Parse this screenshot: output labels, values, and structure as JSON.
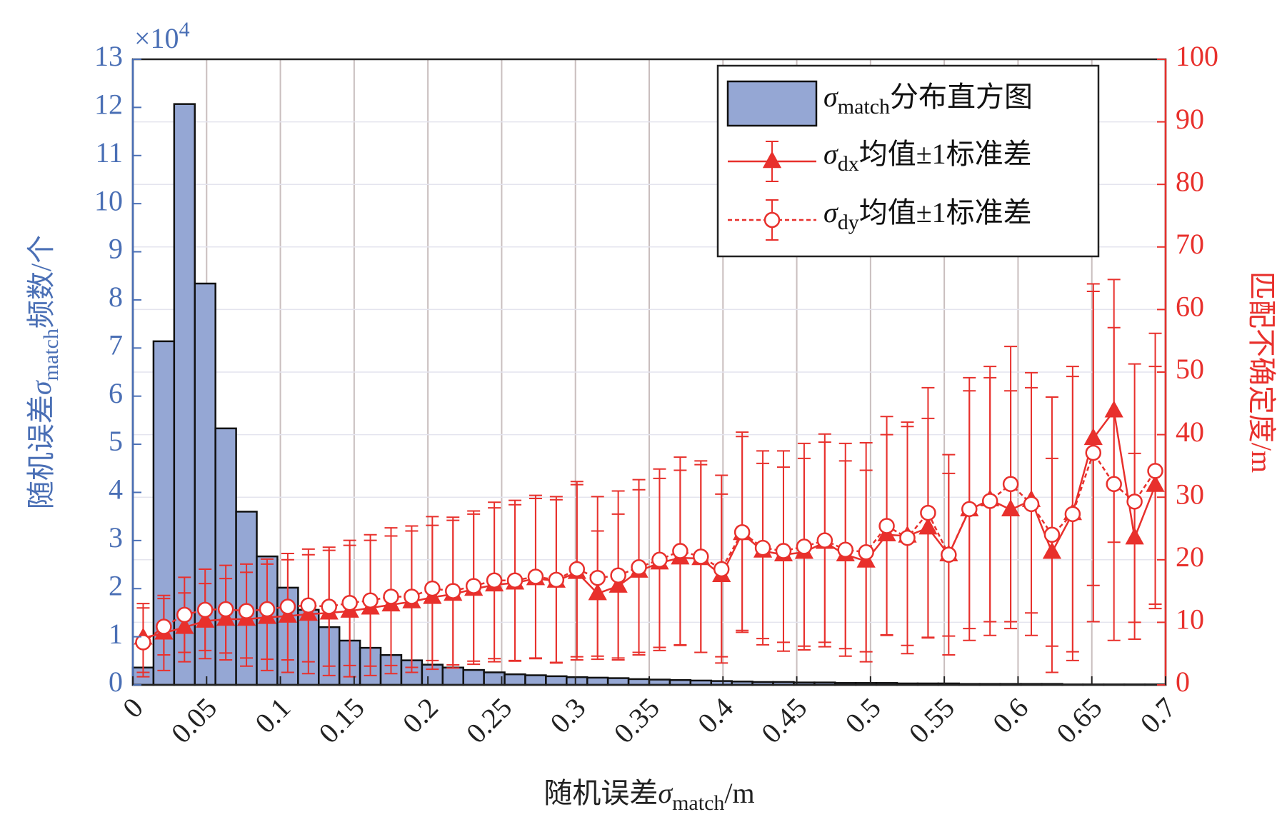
{
  "chart_data": {
    "type": "histogram",
    "xlabel": [
      "随机误差",
      "σ",
      "match",
      "/m"
    ],
    "ylabel": [
      "随机误差",
      "σ",
      "match",
      "频数/个"
    ],
    "y2label": "匹配不确定度/m",
    "y_multiplier": [
      "×10",
      "4"
    ],
    "xlim": [
      0,
      0.7
    ],
    "xticks": [
      0,
      0.05,
      0.1,
      0.15,
      0.2,
      0.25,
      0.3,
      0.35,
      0.4,
      0.45,
      0.5,
      0.55,
      0.6,
      0.65,
      0.7
    ],
    "ylim": [
      0,
      13
    ],
    "yticks": [
      0,
      1,
      2,
      3,
      4,
      5,
      6,
      7,
      8,
      9,
      10,
      11,
      12,
      13
    ],
    "y2lim": [
      0,
      100
    ],
    "y2ticks": [
      0,
      10,
      20,
      30,
      40,
      50,
      60,
      70,
      80,
      90,
      100
    ],
    "grid": true,
    "legend": "upper right",
    "histogram": {
      "name": [
        "σ",
        "match",
        "分布直方图"
      ],
      "color": "#95a7d4",
      "bins": [
        0,
        0.014,
        0.028,
        0.042,
        0.056,
        0.07,
        0.084,
        0.098,
        0.112,
        0.126,
        0.14,
        0.154,
        0.168,
        0.182,
        0.196,
        0.21,
        0.224,
        0.238,
        0.252,
        0.266,
        0.28,
        0.294,
        0.308,
        0.322,
        0.336,
        0.35,
        0.364,
        0.378,
        0.392,
        0.406,
        0.42,
        0.434,
        0.448,
        0.462,
        0.476,
        0.49,
        0.504,
        0.518,
        0.532,
        0.546,
        0.56,
        0.574,
        0.588,
        0.602,
        0.616,
        0.63,
        0.644,
        0.658,
        0.672,
        0.686,
        0.7
      ],
      "counts": [
        0.36,
        7.14,
        12.07,
        8.34,
        5.33,
        3.6,
        2.67,
        2.02,
        1.56,
        1.2,
        0.92,
        0.77,
        0.62,
        0.51,
        0.42,
        0.36,
        0.31,
        0.26,
        0.22,
        0.2,
        0.18,
        0.16,
        0.15,
        0.14,
        0.12,
        0.11,
        0.1,
        0.09,
        0.08,
        0.07,
        0.06,
        0.06,
        0.05,
        0.05,
        0.04,
        0.04,
        0.04,
        0.03,
        0.03,
        0.03,
        0.02,
        0.02,
        0.02,
        0.02,
        0.02,
        0.01,
        0.01,
        0.01,
        0.01,
        0.01
      ]
    },
    "x": [
      0.007,
      0.021,
      0.035,
      0.049,
      0.063,
      0.077,
      0.091,
      0.105,
      0.119,
      0.133,
      0.147,
      0.161,
      0.175,
      0.189,
      0.203,
      0.217,
      0.231,
      0.245,
      0.259,
      0.273,
      0.287,
      0.301,
      0.315,
      0.329,
      0.343,
      0.357,
      0.371,
      0.385,
      0.399,
      0.413,
      0.427,
      0.441,
      0.455,
      0.469,
      0.483,
      0.497,
      0.511,
      0.525,
      0.539,
      0.553,
      0.567,
      0.581,
      0.595,
      0.609,
      0.623,
      0.637,
      0.651,
      0.665,
      0.679,
      0.693
    ],
    "series": [
      {
        "name": [
          "σ",
          "dx",
          "均值±1标准差"
        ],
        "color": "#e8302c",
        "marker": "triangle",
        "dashed": false,
        "axis": "y2",
        "values": [
          7.5,
          8.3,
          9.2,
          10.2,
          10.5,
          10.5,
          10.8,
          11.0,
          11.3,
          11.5,
          11.8,
          12.3,
          12.8,
          13.3,
          14.0,
          14.5,
          15.3,
          16.0,
          16.3,
          17.0,
          16.6,
          18.0,
          14.6,
          15.8,
          18.2,
          19.5,
          20.3,
          20.2,
          17.5,
          24.2,
          21.4,
          20.8,
          21.2,
          22.8,
          20.8,
          19.8,
          24.0,
          23.8,
          25.1,
          20.8,
          28.0,
          29.6,
          28.0,
          29.5,
          21.2,
          27.4,
          39.4,
          43.8,
          23.5,
          31.9
        ],
        "errors": [
          5.5,
          6,
          5.5,
          6,
          6.5,
          7.5,
          8.5,
          9,
          9.5,
          10,
          10.5,
          10.8,
          11,
          11.3,
          11.5,
          11.8,
          12,
          12.3,
          12.5,
          12.8,
          13,
          14,
          10,
          11.5,
          13,
          13.5,
          14,
          15,
          13,
          15.5,
          14,
          14,
          15,
          16,
          15,
          14.5,
          16,
          17.5,
          17.5,
          13,
          19,
          19.5,
          19,
          18,
          15,
          23.5,
          23.5,
          21,
          13.5,
          19
        ]
      },
      {
        "name": [
          "σ",
          "dy",
          "均值±1标准差"
        ],
        "color": "#e8302c",
        "marker": "circle",
        "dashed": true,
        "axis": "y2",
        "values": [
          6.8,
          9.3,
          11.2,
          12.0,
          12.1,
          11.8,
          12.1,
          12.5,
          12.7,
          12.5,
          13.1,
          13.5,
          14.1,
          14.1,
          15.4,
          15.0,
          15.8,
          16.7,
          16.7,
          17.3,
          16.8,
          18.5,
          17.1,
          17.5,
          18.8,
          20.0,
          21.4,
          20.5,
          18.5,
          24.4,
          21.9,
          21.4,
          22.1,
          23.1,
          21.6,
          21.2,
          25.4,
          23.5,
          27.5,
          20.8,
          28.1,
          29.4,
          32.1,
          28.9,
          24.0,
          27.3,
          37.1,
          32.1,
          29.3,
          34.2
        ],
        "errors": [
          5.5,
          4.5,
          6,
          6.5,
          7,
          7.5,
          8,
          8.5,
          9,
          9.5,
          10,
          10.5,
          11,
          11.3,
          11.5,
          11.8,
          12,
          12.5,
          12.8,
          13,
          13.3,
          14,
          13,
          13.5,
          14,
          14.5,
          15,
          15.3,
          15,
          16,
          15.5,
          16,
          16.5,
          17,
          17,
          17.5,
          17.5,
          18.5,
          20,
          16,
          21,
          21.5,
          22,
          21,
          22,
          22,
          27,
          25,
          22,
          22
        ]
      }
    ]
  }
}
